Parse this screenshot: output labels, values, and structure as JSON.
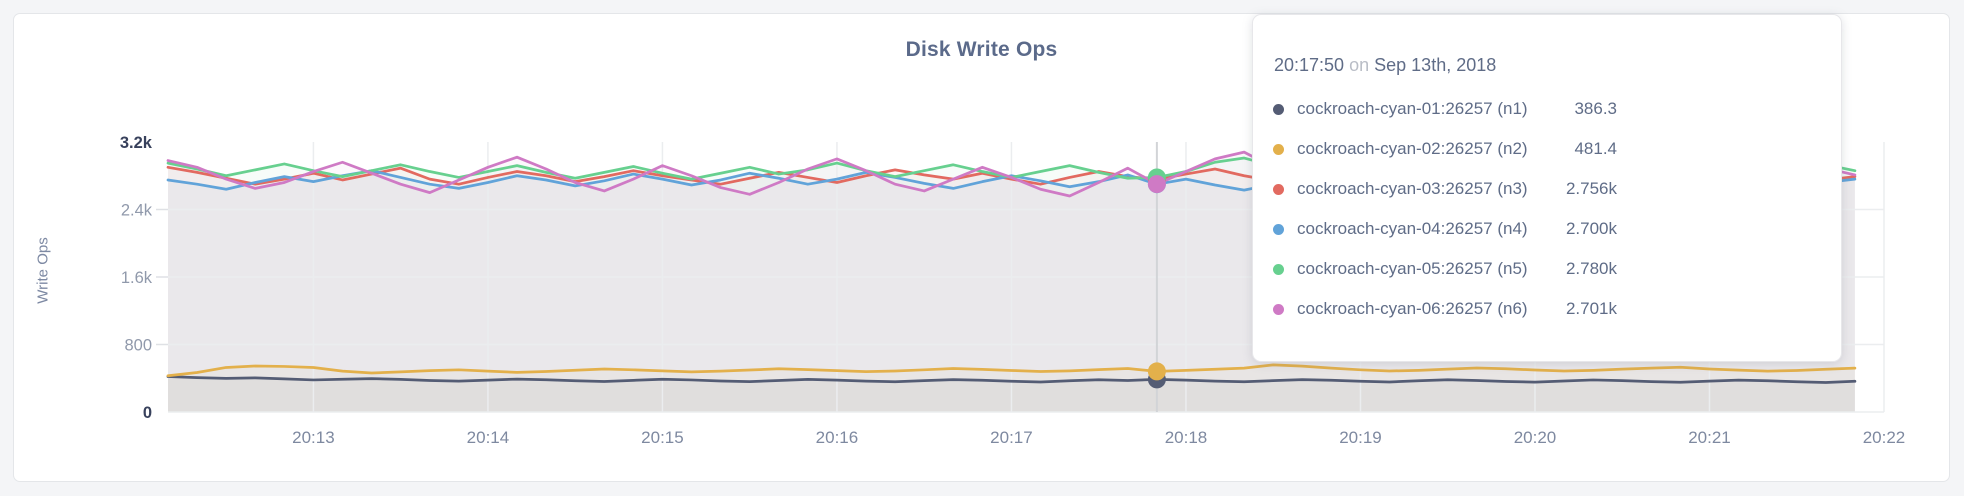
{
  "page_background": "#f4f5f7",
  "tooltip": {
    "time": "20:17:50",
    "conjunction": "on",
    "date": "Sep 13th, 2018"
  },
  "chart_data": {
    "type": "line",
    "title": "Disk Write Ops",
    "ylabel": "Write Ops",
    "xlabel": "",
    "ylim": [
      0,
      3200
    ],
    "grid": true,
    "legend_position": "hover-tooltip",
    "x_unit": "seconds after 20:12:10 on Sep 13th, 2018",
    "x_step_seconds": 10,
    "x_domain_seconds": [
      0,
      590
    ],
    "x_ticks": [
      {
        "label": "20:13",
        "t": 50
      },
      {
        "label": "20:14",
        "t": 110
      },
      {
        "label": "20:15",
        "t": 170
      },
      {
        "label": "20:16",
        "t": 230
      },
      {
        "label": "20:17",
        "t": 290
      },
      {
        "label": "20:18",
        "t": 350
      },
      {
        "label": "20:19",
        "t": 410
      },
      {
        "label": "20:20",
        "t": 470
      },
      {
        "label": "20:21",
        "t": 530
      },
      {
        "label": "20:22",
        "t": 590
      }
    ],
    "y_ticks": [
      {
        "label": "0",
        "value": 0,
        "emphasis": true
      },
      {
        "label": "800",
        "value": 800,
        "emphasis": false
      },
      {
        "label": "1.6k",
        "value": 1600,
        "emphasis": false
      },
      {
        "label": "2.4k",
        "value": 2400,
        "emphasis": false
      },
      {
        "label": "3.2k",
        "value": 3200,
        "emphasis": true
      }
    ],
    "hover": {
      "index": 34,
      "time": "20:17:50",
      "date": "Sep 13th, 2018"
    },
    "series": [
      {
        "name": "cockroach-cyan-01:26257 (n1)",
        "color": "#545c74",
        "hover_value_label": "386.3",
        "values": [
          420,
          408,
          398,
          404,
          392,
          380,
          388,
          396,
          386,
          374,
          366,
          378,
          390,
          382,
          370,
          362,
          375,
          388,
          380,
          368,
          360,
          374,
          386,
          378,
          366,
          358,
          372,
          384,
          376,
          364,
          356,
          370,
          382,
          374,
          386.3,
          378,
          366,
          358,
          372,
          384,
          376,
          364,
          356,
          370,
          382,
          374,
          362,
          354,
          368,
          380,
          372,
          360,
          352,
          366,
          378,
          370,
          358,
          350,
          364
        ]
      },
      {
        "name": "cockroach-cyan-02:26257 (n2)",
        "color": "#e3b04b",
        "hover_value_label": "481.4",
        "values": [
          430,
          468,
          528,
          545,
          540,
          528,
          484,
          462,
          476,
          490,
          500,
          485,
          470,
          480,
          495,
          510,
          500,
          488,
          476,
          484,
          498,
          512,
          502,
          490,
          478,
          486,
          500,
          515,
          505,
          492,
          480,
          488,
          502,
          516,
          481.4,
          494,
          506,
          520,
          558,
          544,
          520,
          500,
          486,
          494,
          508,
          522,
          512,
          498,
          486,
          494,
          508,
          520,
          530,
          510,
          496,
          484,
          492,
          506,
          520
        ]
      },
      {
        "name": "cockroach-cyan-03:26257 (n3)",
        "color": "#e26a60",
        "hover_value_label": "2.756k",
        "values": [
          2900,
          2840,
          2770,
          2700,
          2760,
          2830,
          2750,
          2820,
          2890,
          2760,
          2700,
          2780,
          2850,
          2800,
          2730,
          2790,
          2860,
          2800,
          2750,
          2700,
          2770,
          2840,
          2780,
          2720,
          2800,
          2870,
          2810,
          2760,
          2830,
          2760,
          2700,
          2780,
          2850,
          2790,
          2756,
          2820,
          2880,
          2800,
          2740,
          2800,
          2860,
          2790,
          2730,
          2790,
          2850,
          2780,
          2720,
          2780,
          2840,
          2770,
          2710,
          2770,
          2830,
          2760,
          2700,
          2760,
          2820,
          2750,
          2790
        ]
      },
      {
        "name": "cockroach-cyan-04:26257 (n4)",
        "color": "#61a3d9",
        "hover_value_label": "2.700k",
        "values": [
          2750,
          2700,
          2640,
          2720,
          2790,
          2730,
          2800,
          2860,
          2780,
          2700,
          2650,
          2720,
          2800,
          2750,
          2680,
          2740,
          2820,
          2760,
          2690,
          2750,
          2830,
          2770,
          2700,
          2760,
          2840,
          2780,
          2710,
          2650,
          2730,
          2800,
          2740,
          2670,
          2730,
          2810,
          2700,
          2760,
          2690,
          2630,
          2700,
          2780,
          2720,
          2650,
          2710,
          2790,
          2730,
          2660,
          2720,
          2800,
          2740,
          2670,
          2730,
          2810,
          2750,
          2680,
          2740,
          2600,
          2650,
          2720,
          2760
        ]
      },
      {
        "name": "cockroach-cyan-05:26257 (n5)",
        "color": "#67d08f",
        "hover_value_label": "2.780k",
        "values": [
          2950,
          2880,
          2800,
          2870,
          2940,
          2860,
          2790,
          2860,
          2930,
          2850,
          2780,
          2850,
          2920,
          2840,
          2770,
          2840,
          2910,
          2830,
          2760,
          2830,
          2900,
          2820,
          2870,
          2950,
          2860,
          2790,
          2860,
          2930,
          2850,
          2780,
          2850,
          2920,
          2840,
          2770,
          2780,
          2850,
          2960,
          3010,
          2920,
          2840,
          2900,
          2830,
          2760,
          2830,
          2900,
          2820,
          2750,
          2820,
          2890,
          2810,
          2740,
          2810,
          2880,
          2800,
          2730,
          2800,
          2870,
          2930,
          2860
        ]
      },
      {
        "name": "cockroach-cyan-06:26257 (n6)",
        "color": "#cf7ac5",
        "hover_value_label": "2.701k",
        "values": [
          2980,
          2900,
          2760,
          2650,
          2720,
          2850,
          2960,
          2830,
          2700,
          2600,
          2750,
          2900,
          3020,
          2880,
          2720,
          2620,
          2760,
          2920,
          2800,
          2660,
          2580,
          2720,
          2880,
          3000,
          2860,
          2700,
          2620,
          2760,
          2900,
          2780,
          2640,
          2560,
          2720,
          2890,
          2701,
          2850,
          3000,
          3080,
          2900,
          2740,
          2620,
          2750,
          2910,
          2790,
          2650,
          2580,
          2730,
          2880,
          2760,
          2640,
          2700,
          2860,
          2980,
          2840,
          2690,
          2610,
          2750,
          2890,
          2810
        ]
      }
    ],
    "style": {
      "gridline_color": "#ebedef",
      "tick_stub_color": "#dfe1e5",
      "hover_line_color": "#d2d4d7",
      "area_fill_opacity": 0.055,
      "axis_label_color": "#9099ab",
      "axis_label_emphasis_color": "#38415c",
      "x_label_color": "#7e89a0"
    }
  }
}
